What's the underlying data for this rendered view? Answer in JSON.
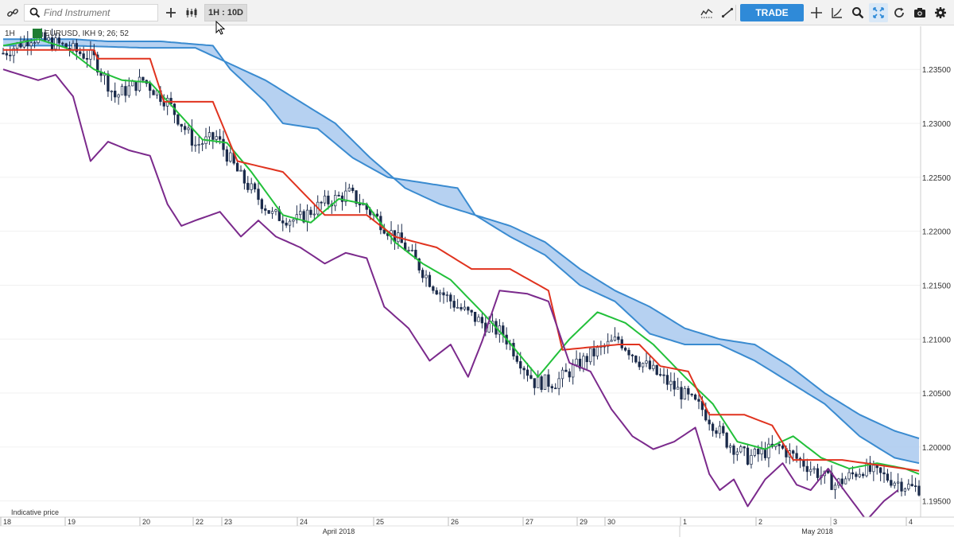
{
  "toolbar": {
    "search_placeholder": "Find Instrument",
    "interval_label": "1H : 10D",
    "trade_label": "TRADE",
    "left_icons": [
      "link-icon",
      "search-icon",
      "plus-icon",
      "candles-icon"
    ],
    "right_icons": [
      "indicators-icon",
      "draw-line-icon",
      "crosshair-icon",
      "axis-icon",
      "zoom-icon",
      "fit-icon",
      "refresh-icon",
      "camera-icon",
      "settings-icon"
    ],
    "accent": "#2f8ad8"
  },
  "header": {
    "timeframe": "1H",
    "instrument_line": "EURUSD, IKH 9; 26; 52"
  },
  "footer_note": "Indicative price",
  "chart_data": {
    "type": "candlestick",
    "indicator": "Ichimoku (IKH 9; 26; 52)",
    "y_ticks": [
      "1.23500",
      "1.23000",
      "1.22500",
      "1.22000",
      "1.21500",
      "1.21000",
      "1.20500",
      "1.20000",
      "1.19500"
    ],
    "ylim": [
      1.1935,
      1.239
    ],
    "x_day_labels": [
      "18",
      "19",
      "20",
      "22",
      "23",
      "24",
      "25",
      "26",
      "27",
      "29",
      "30",
      "1",
      "2",
      "3",
      "4"
    ],
    "x_month_labels": [
      "April 2018",
      "May 2018"
    ],
    "colors": {
      "tenkan": "#22c03a",
      "kijun": "#e0331f",
      "chikou": "#7b2a8c",
      "cloud_edge": "#3a8bd0",
      "cloud_fill": "#a9c9ee",
      "candle": "#1a2a4a"
    },
    "price_path": [
      [
        0,
        1.2365
      ],
      [
        8,
        1.238
      ],
      [
        16,
        1.2373
      ],
      [
        26,
        1.236
      ],
      [
        32,
        1.2325
      ],
      [
        40,
        1.234
      ],
      [
        47,
        1.232
      ],
      [
        55,
        1.228
      ],
      [
        61,
        1.2287
      ],
      [
        68,
        1.225
      ],
      [
        77,
        1.2215
      ],
      [
        84,
        1.221
      ],
      [
        91,
        1.2225
      ],
      [
        99,
        1.2235
      ],
      [
        106,
        1.2215
      ],
      [
        115,
        1.2185
      ],
      [
        123,
        1.215
      ],
      [
        130,
        1.213
      ],
      [
        137,
        1.2115
      ],
      [
        143,
        1.2105
      ],
      [
        152,
        1.206
      ],
      [
        158,
        1.206
      ],
      [
        168,
        1.2085
      ],
      [
        176,
        1.21
      ],
      [
        182,
        1.208
      ],
      [
        192,
        1.2055
      ],
      [
        200,
        1.2035
      ],
      [
        207,
        1.2005
      ],
      [
        213,
        1.199
      ],
      [
        222,
        1.2
      ],
      [
        229,
        1.1985
      ],
      [
        238,
        1.1965
      ],
      [
        246,
        1.198
      ],
      [
        254,
        1.197
      ],
      [
        260,
        1.1962
      ]
    ],
    "tenkan_path": [
      [
        0,
        1.2372
      ],
      [
        10,
        1.2378
      ],
      [
        18,
        1.237
      ],
      [
        26,
        1.235
      ],
      [
        34,
        1.234
      ],
      [
        42,
        1.2338
      ],
      [
        50,
        1.231
      ],
      [
        57,
        1.2285
      ],
      [
        64,
        1.2282
      ],
      [
        71,
        1.2255
      ],
      [
        80,
        1.2215
      ],
      [
        88,
        1.2208
      ],
      [
        96,
        1.223
      ],
      [
        104,
        1.2225
      ],
      [
        112,
        1.219
      ],
      [
        120,
        1.217
      ],
      [
        128,
        1.2155
      ],
      [
        137,
        1.2125
      ],
      [
        144,
        1.21
      ],
      [
        153,
        1.2065
      ],
      [
        162,
        1.21
      ],
      [
        170,
        1.2125
      ],
      [
        178,
        1.2115
      ],
      [
        186,
        1.2095
      ],
      [
        195,
        1.2065
      ],
      [
        203,
        1.204
      ],
      [
        210,
        1.2005
      ],
      [
        218,
        1.1998
      ],
      [
        226,
        1.201
      ],
      [
        234,
        1.199
      ],
      [
        242,
        1.198
      ],
      [
        250,
        1.1985
      ],
      [
        258,
        1.198
      ],
      [
        262,
        1.1975
      ]
    ],
    "kijun_path": [
      [
        0,
        1.2368
      ],
      [
        26,
        1.2368
      ],
      [
        27,
        1.236
      ],
      [
        42,
        1.236
      ],
      [
        46,
        1.232
      ],
      [
        60,
        1.232
      ],
      [
        67,
        1.2265
      ],
      [
        80,
        1.2255
      ],
      [
        92,
        1.2215
      ],
      [
        104,
        1.2215
      ],
      [
        112,
        1.2195
      ],
      [
        124,
        1.2185
      ],
      [
        134,
        1.2165
      ],
      [
        145,
        1.2165
      ],
      [
        156,
        1.2145
      ],
      [
        160,
        1.209
      ],
      [
        176,
        1.2095
      ],
      [
        182,
        1.2095
      ],
      [
        188,
        1.2075
      ],
      [
        196,
        1.207
      ],
      [
        202,
        1.203
      ],
      [
        212,
        1.203
      ],
      [
        220,
        1.202
      ],
      [
        226,
        1.1988
      ],
      [
        240,
        1.1988
      ],
      [
        262,
        1.1978
      ]
    ],
    "chikou_path": [
      [
        0,
        1.235
      ],
      [
        5,
        1.2345
      ],
      [
        10,
        1.234
      ],
      [
        15,
        1.2345
      ],
      [
        20,
        1.2325
      ],
      [
        25,
        1.2265
      ],
      [
        30,
        1.2283
      ],
      [
        36,
        1.2275
      ],
      [
        42,
        1.227
      ],
      [
        47,
        1.2225
      ],
      [
        51,
        1.2205
      ],
      [
        55,
        1.221
      ],
      [
        62,
        1.2218
      ],
      [
        68,
        1.2195
      ],
      [
        73,
        1.221
      ],
      [
        78,
        1.2195
      ],
      [
        85,
        1.2185
      ],
      [
        92,
        1.217
      ],
      [
        98,
        1.218
      ],
      [
        104,
        1.2175
      ],
      [
        109,
        1.213
      ],
      [
        116,
        1.211
      ],
      [
        122,
        1.208
      ],
      [
        128,
        1.2095
      ],
      [
        133,
        1.2065
      ],
      [
        137,
        1.2098
      ],
      [
        142,
        1.2145
      ],
      [
        150,
        1.2142
      ],
      [
        156,
        1.2135
      ],
      [
        162,
        1.2078
      ],
      [
        168,
        1.207
      ],
      [
        174,
        1.2035
      ],
      [
        180,
        1.201
      ],
      [
        186,
        1.1998
      ],
      [
        192,
        1.2005
      ],
      [
        198,
        1.2018
      ],
      [
        202,
        1.1975
      ],
      [
        205,
        1.196
      ],
      [
        209,
        1.197
      ],
      [
        213,
        1.1945
      ],
      [
        218,
        1.197
      ],
      [
        223,
        1.1985
      ],
      [
        227,
        1.1965
      ],
      [
        231,
        1.196
      ],
      [
        236,
        1.198
      ],
      [
        241,
        1.1958
      ],
      [
        247,
        1.1932
      ],
      [
        252,
        1.195
      ],
      [
        256,
        1.196
      ]
    ],
    "cloud_upper": [
      [
        0,
        1.2378
      ],
      [
        20,
        1.2378
      ],
      [
        30,
        1.2376
      ],
      [
        45,
        1.2376
      ],
      [
        60,
        1.2372
      ],
      [
        65,
        1.235
      ],
      [
        75,
        1.232
      ],
      [
        80,
        1.23
      ],
      [
        90,
        1.2295
      ],
      [
        100,
        1.2268
      ],
      [
        110,
        1.225
      ],
      [
        120,
        1.2245
      ],
      [
        130,
        1.224
      ],
      [
        135,
        1.2215
      ],
      [
        145,
        1.2205
      ],
      [
        155,
        1.219
      ],
      [
        165,
        1.2165
      ],
      [
        175,
        1.2145
      ],
      [
        185,
        1.213
      ],
      [
        195,
        1.211
      ],
      [
        205,
        1.21
      ],
      [
        215,
        1.2095
      ],
      [
        225,
        1.2075
      ],
      [
        235,
        1.205
      ],
      [
        245,
        1.203
      ],
      [
        255,
        1.2015
      ],
      [
        262,
        1.2008
      ]
    ],
    "cloud_lower": [
      [
        0,
        1.2372
      ],
      [
        20,
        1.2372
      ],
      [
        40,
        1.237
      ],
      [
        55,
        1.237
      ],
      [
        65,
        1.2355
      ],
      [
        75,
        1.234
      ],
      [
        85,
        1.232
      ],
      [
        95,
        1.23
      ],
      [
        105,
        1.2268
      ],
      [
        115,
        1.224
      ],
      [
        125,
        1.2225
      ],
      [
        135,
        1.2215
      ],
      [
        145,
        1.2195
      ],
      [
        155,
        1.2178
      ],
      [
        165,
        1.215
      ],
      [
        175,
        1.2135
      ],
      [
        185,
        1.2105
      ],
      [
        195,
        1.2095
      ],
      [
        205,
        1.2095
      ],
      [
        215,
        1.208
      ],
      [
        225,
        1.206
      ],
      [
        235,
        1.204
      ],
      [
        245,
        1.201
      ],
      [
        255,
        1.199
      ],
      [
        262,
        1.1985
      ]
    ]
  }
}
